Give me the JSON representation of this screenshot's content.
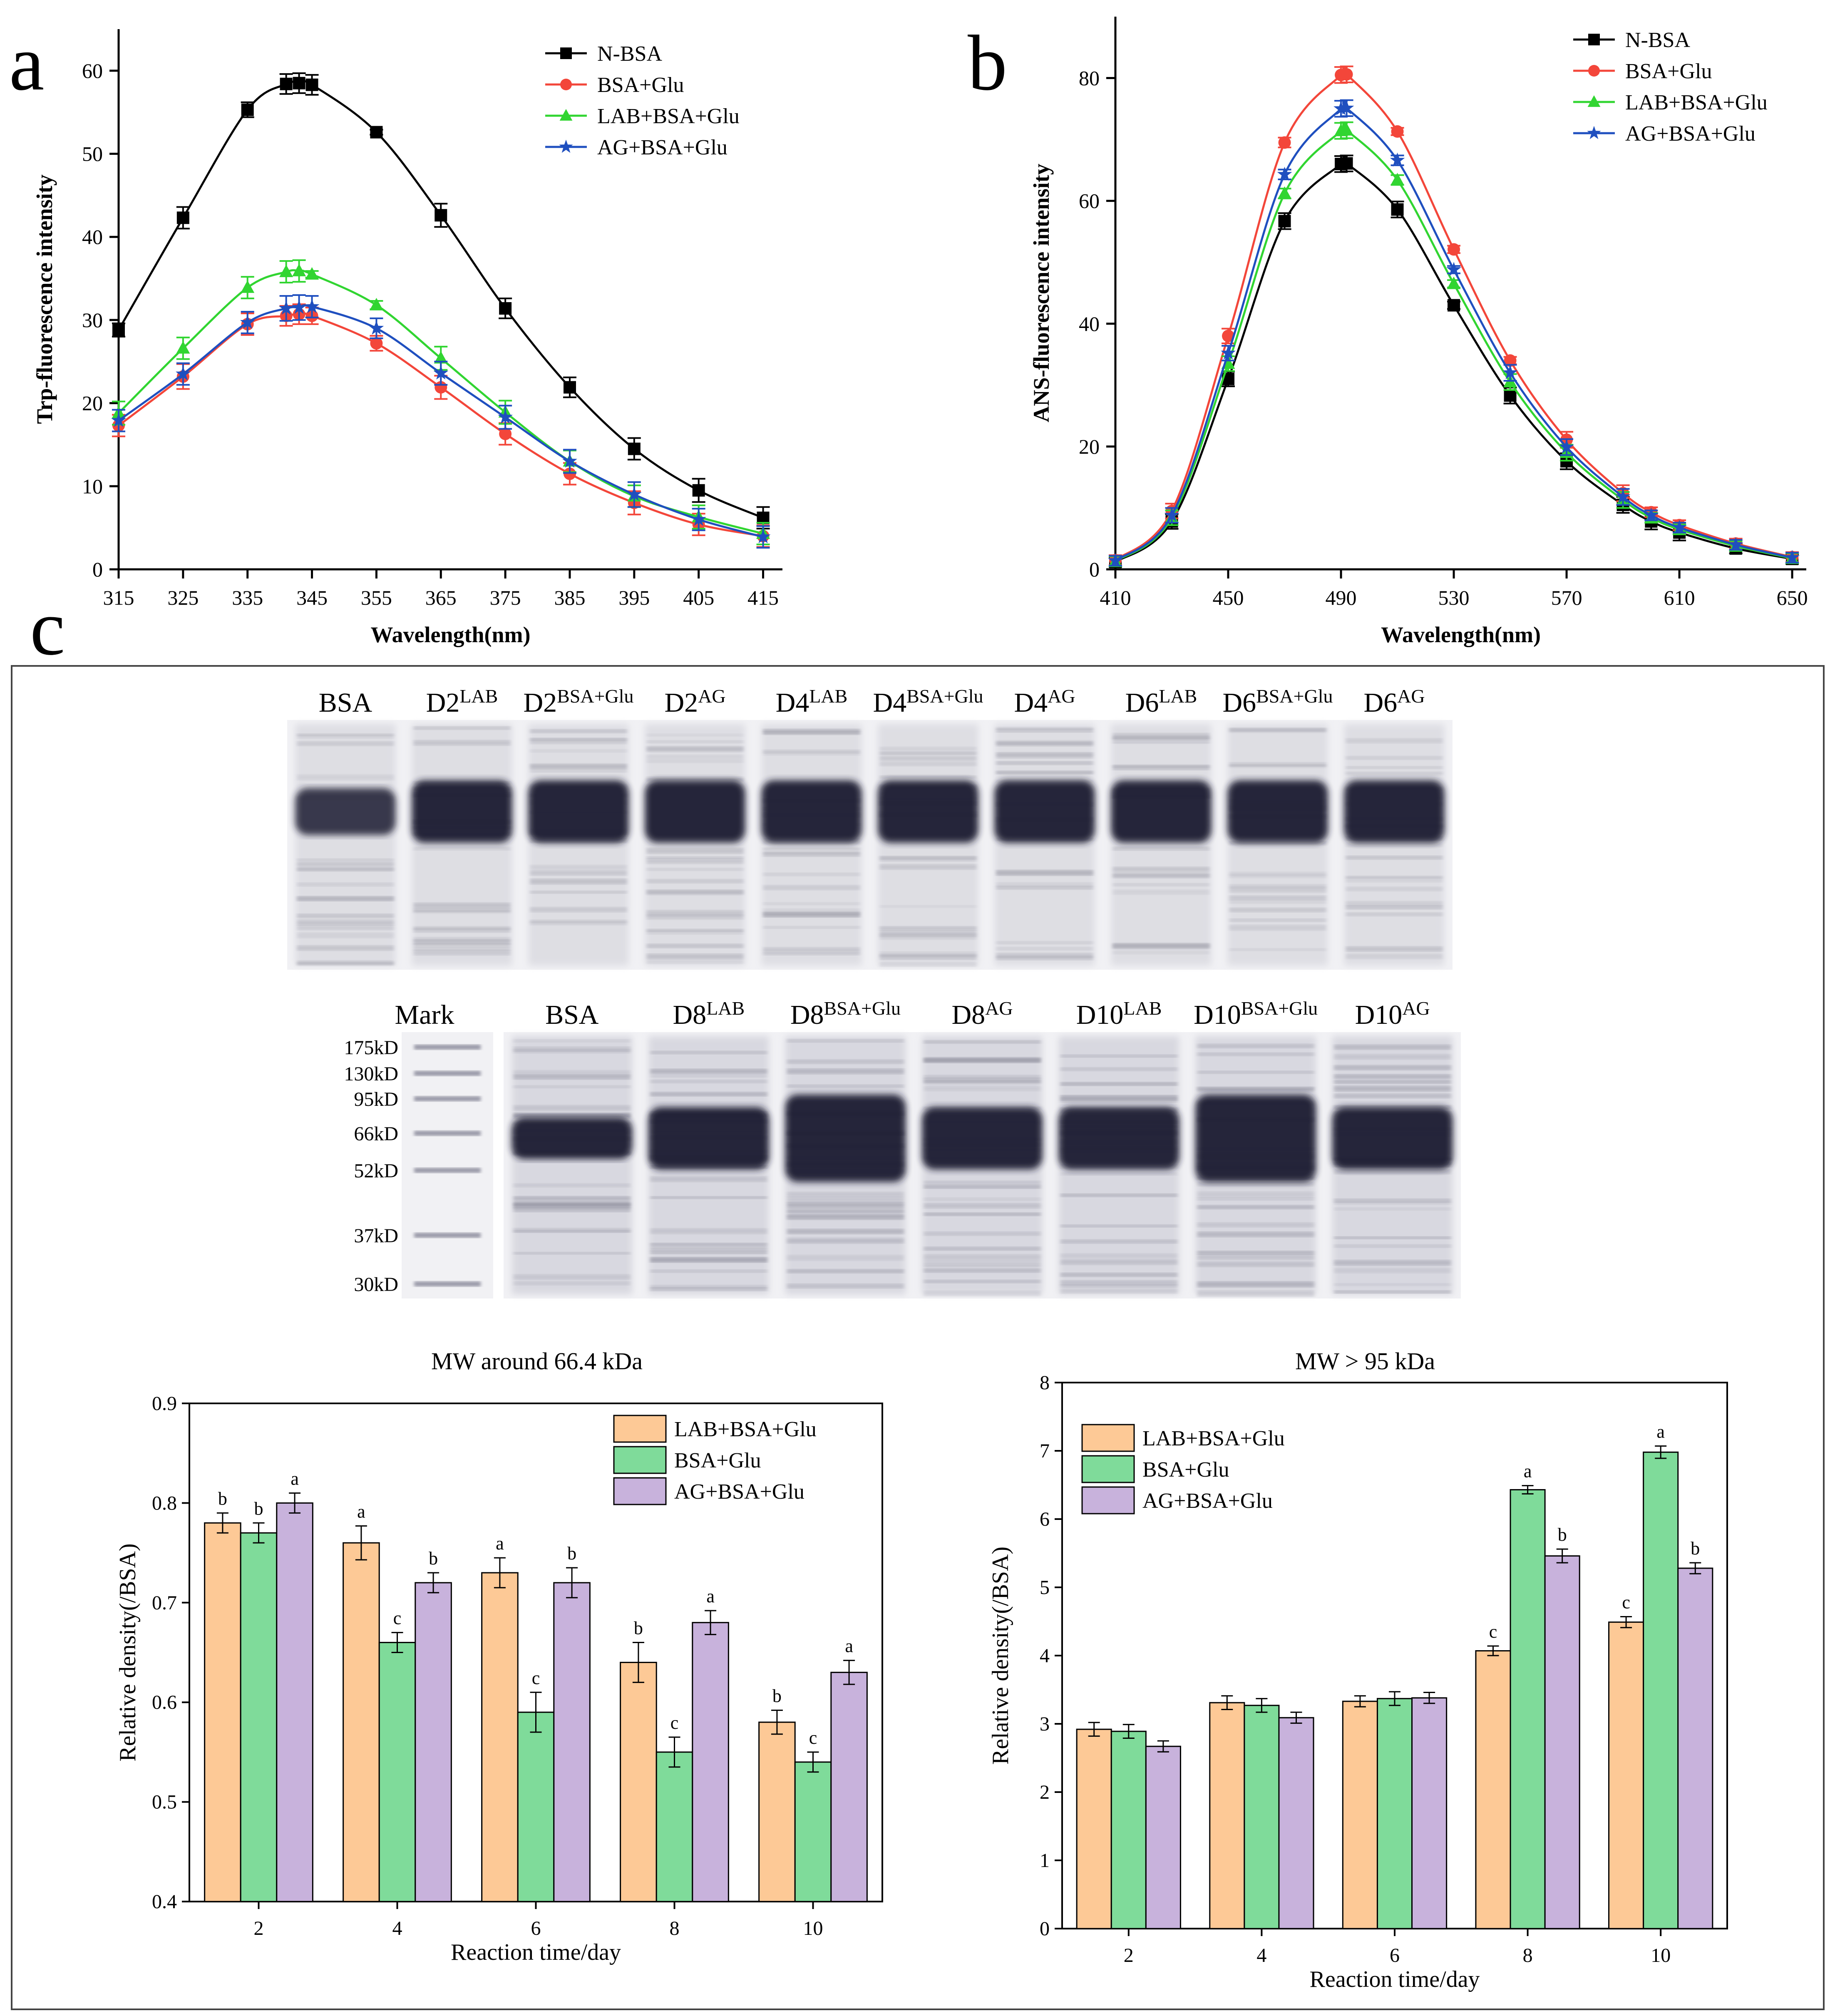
{
  "panels": {
    "a": {
      "label": "a"
    },
    "b": {
      "label": "b"
    },
    "c": {
      "label": "c"
    }
  },
  "colors": {
    "black": "#000000",
    "red": "#f3463a",
    "green": "#31d531",
    "blue": "#1f4fbf",
    "bar_orange": "#fdc996",
    "bar_green": "#7fdb9a",
    "bar_purple": "#c8b2dc"
  },
  "chart_data": [
    {
      "id": "a",
      "type": "line",
      "title": "",
      "xlabel": "Wavelength(nm)",
      "ylabel": "Trp-fluorescence intensity",
      "xlim": [
        315,
        418
      ],
      "ylim": [
        0,
        65
      ],
      "xticks": [
        315,
        325,
        335,
        345,
        355,
        365,
        375,
        385,
        395,
        405,
        415
      ],
      "yticks": [
        0,
        10,
        20,
        30,
        40,
        50,
        60
      ],
      "legend_position": "top-right",
      "series": [
        {
          "name": "N-BSA",
          "color": "#000000",
          "marker": "square",
          "x": [
            315,
            325,
            335,
            341,
            343,
            345,
            355,
            365,
            375,
            385,
            395,
            405,
            415
          ],
          "y": [
            28.8,
            42.3,
            55.3,
            58.4,
            58.5,
            58.3,
            52.6,
            42.6,
            31.4,
            21.9,
            14.5,
            9.5,
            6.2
          ],
          "err": [
            0.8,
            1.3,
            0.9,
            1.2,
            1.2,
            1.2,
            0.3,
            1.4,
            1.2,
            1.2,
            1.3,
            1.4,
            1.3
          ]
        },
        {
          "name": "BSA+Glu",
          "color": "#f3463a",
          "marker": "circle",
          "x": [
            315,
            325,
            335,
            341,
            343,
            345,
            355,
            365,
            375,
            385,
            395,
            405,
            415
          ],
          "y": [
            17.3,
            23.2,
            29.5,
            30.5,
            30.7,
            30.5,
            27.2,
            21.9,
            16.3,
            11.5,
            8.0,
            5.4,
            4.0
          ],
          "err": [
            1.3,
            1.5,
            1.3,
            1.2,
            1.2,
            1.0,
            0.9,
            1.4,
            1.3,
            1.3,
            1.4,
            1.3,
            1.3
          ]
        },
        {
          "name": "LAB+BSA+Glu",
          "color": "#31d531",
          "marker": "triangle",
          "x": [
            315,
            325,
            335,
            341,
            343,
            345,
            355,
            365,
            375,
            385,
            395,
            405,
            415
          ],
          "y": [
            18.8,
            26.6,
            33.9,
            35.8,
            35.9,
            35.5,
            31.8,
            25.4,
            18.9,
            13.0,
            8.8,
            6.3,
            4.3
          ],
          "err": [
            1.4,
            1.3,
            1.3,
            1.3,
            1.3,
            0.4,
            0.5,
            1.4,
            1.4,
            1.3,
            1.3,
            1.4,
            1.3
          ]
        },
        {
          "name": "AG+BSA+Glu",
          "color": "#1f4fbf",
          "marker": "star",
          "x": [
            315,
            325,
            335,
            341,
            343,
            345,
            355,
            365,
            375,
            385,
            395,
            405,
            415
          ],
          "y": [
            17.9,
            23.5,
            29.7,
            31.4,
            31.5,
            31.6,
            29.0,
            23.6,
            18.3,
            13.0,
            9.0,
            6.0,
            3.9
          ],
          "err": [
            1.3,
            1.3,
            1.3,
            1.5,
            1.5,
            1.3,
            1.2,
            1.4,
            1.4,
            1.4,
            1.5,
            1.3,
            1.3
          ]
        }
      ]
    },
    {
      "id": "b",
      "type": "line",
      "title": "",
      "xlabel": "Wavelength(nm)",
      "ylabel": "ANS-fluorescence intensity",
      "xlim": [
        410,
        655
      ],
      "ylim": [
        0,
        90
      ],
      "xticks": [
        410,
        450,
        490,
        530,
        570,
        610,
        650
      ],
      "yticks": [
        0,
        20,
        40,
        60,
        80
      ],
      "legend_position": "top-right",
      "series": [
        {
          "name": "N-BSA",
          "color": "#000000",
          "marker": "square",
          "x": [
            410,
            430,
            450,
            470,
            490,
            492,
            510,
            530,
            550,
            570,
            590,
            600,
            610,
            630,
            650
          ],
          "y": [
            1.2,
            7.8,
            31.0,
            56.7,
            66.0,
            66.1,
            58.6,
            43.0,
            28.3,
            17.6,
            10.5,
            7.8,
            6.0,
            3.4,
            1.7
          ],
          "err": [
            0.8,
            1.2,
            1.2,
            1.3,
            1.3,
            1.3,
            1.3,
            0.6,
            1.3,
            1.3,
            1.3,
            1.3,
            1.3,
            0.8,
            0.8
          ]
        },
        {
          "name": "BSA+Glu",
          "color": "#f3463a",
          "marker": "circle",
          "x": [
            410,
            430,
            450,
            470,
            490,
            492,
            510,
            530,
            550,
            570,
            590,
            600,
            610,
            630,
            650
          ],
          "y": [
            1.5,
            9.5,
            38.0,
            69.5,
            80.5,
            80.6,
            71.3,
            52.1,
            34.0,
            21.1,
            12.4,
            9.3,
            7.2,
            4.2,
            2.0
          ],
          "err": [
            0.8,
            1.2,
            1.2,
            0.8,
            1.3,
            1.3,
            0.6,
            0.6,
            0.6,
            1.3,
            1.3,
            0.8,
            0.8,
            0.8,
            0.8
          ]
        },
        {
          "name": "LAB+BSA+Glu",
          "color": "#31d531",
          "marker": "triangle",
          "x": [
            410,
            430,
            450,
            470,
            490,
            492,
            510,
            530,
            550,
            570,
            590,
            600,
            610,
            630,
            650
          ],
          "y": [
            1.3,
            8.4,
            33.5,
            61.2,
            71.4,
            71.5,
            63.4,
            46.5,
            30.5,
            19.0,
            11.3,
            8.4,
            6.5,
            3.8,
            1.8
          ],
          "err": [
            0.8,
            1.2,
            1.2,
            0.8,
            1.3,
            1.3,
            0.8,
            0.6,
            1.3,
            1.3,
            1.3,
            0.8,
            0.8,
            0.8,
            0.8
          ]
        },
        {
          "name": "AG+BSA+Glu",
          "color": "#1f4fbf",
          "marker": "star",
          "x": [
            410,
            430,
            450,
            470,
            490,
            492,
            510,
            530,
            550,
            570,
            590,
            600,
            610,
            630,
            650
          ],
          "y": [
            1.4,
            8.8,
            35.2,
            64.3,
            75.0,
            75.1,
            66.6,
            48.8,
            32.0,
            19.9,
            11.8,
            8.8,
            6.8,
            4.0,
            1.9
          ],
          "err": [
            0.8,
            1.2,
            1.2,
            0.8,
            1.3,
            1.3,
            0.8,
            0.6,
            1.3,
            1.3,
            1.3,
            0.8,
            0.8,
            0.8,
            0.8
          ]
        }
      ]
    },
    {
      "id": "c1",
      "type": "bar",
      "title": "MW around 66.4 kDa",
      "xlabel": "Reaction time/day",
      "ylabel": "Relative density(/BSA)",
      "ylim": [
        0.4,
        0.9
      ],
      "yticks": [
        0.4,
        0.5,
        0.6,
        0.7,
        0.8,
        0.9
      ],
      "categories": [
        "2",
        "4",
        "6",
        "8",
        "10"
      ],
      "legend_position": "top-right",
      "series": [
        {
          "name": "LAB+BSA+Glu",
          "color": "#fdc996",
          "values": [
            0.78,
            0.76,
            0.73,
            0.64,
            0.58
          ],
          "err": [
            0.01,
            0.017,
            0.015,
            0.02,
            0.012
          ],
          "letters": [
            "b",
            "a",
            "a",
            "b",
            "b"
          ]
        },
        {
          "name": "BSA+Glu",
          "color": "#7fdb9a",
          "values": [
            0.77,
            0.66,
            0.59,
            0.55,
            0.54
          ],
          "err": [
            0.01,
            0.01,
            0.02,
            0.015,
            0.01
          ],
          "letters": [
            "b",
            "c",
            "c",
            "c",
            "c"
          ]
        },
        {
          "name": "AG+BSA+Glu",
          "color": "#c8b2dc",
          "values": [
            0.8,
            0.72,
            0.72,
            0.68,
            0.63
          ],
          "err": [
            0.01,
            0.01,
            0.015,
            0.012,
            0.012
          ],
          "letters": [
            "a",
            "b",
            "b",
            "a",
            "a"
          ]
        }
      ]
    },
    {
      "id": "c2",
      "type": "bar",
      "title": "MW > 95 kDa",
      "xlabel": "Reaction time/day",
      "ylabel": "Relative density(/BSA)",
      "ylim": [
        0,
        8
      ],
      "yticks": [
        0,
        1,
        2,
        3,
        4,
        5,
        6,
        7,
        8
      ],
      "categories": [
        "2",
        "4",
        "6",
        "8",
        "10"
      ],
      "legend_position": "top-left",
      "series": [
        {
          "name": "LAB+BSA+Glu",
          "color": "#fdc996",
          "values": [
            2.92,
            3.31,
            3.33,
            4.07,
            4.49
          ],
          "err": [
            0.1,
            0.1,
            0.08,
            0.07,
            0.08
          ],
          "letters": [
            "",
            "",
            "",
            "c",
            "c"
          ]
        },
        {
          "name": "BSA+Glu",
          "color": "#7fdb9a",
          "values": [
            2.89,
            3.27,
            3.37,
            6.43,
            6.98
          ],
          "err": [
            0.1,
            0.1,
            0.1,
            0.06,
            0.09
          ],
          "letters": [
            "",
            "",
            "",
            "a",
            "a"
          ]
        },
        {
          "name": "AG+BSA+Glu",
          "color": "#c8b2dc",
          "values": [
            2.67,
            3.09,
            3.38,
            5.46,
            5.28
          ],
          "err": [
            0.08,
            0.08,
            0.08,
            0.1,
            0.08
          ],
          "letters": [
            "",
            "",
            "",
            "b",
            "b"
          ]
        }
      ]
    }
  ],
  "gel": {
    "top_lanes": [
      {
        "base": "BSA",
        "sup": ""
      },
      {
        "base": "D2",
        "sup": "LAB"
      },
      {
        "base": "D2",
        "sup": "BSA+Glu"
      },
      {
        "base": "D2",
        "sup": "AG"
      },
      {
        "base": "D4",
        "sup": "LAB"
      },
      {
        "base": "D4",
        "sup": "BSA+Glu"
      },
      {
        "base": "D4",
        "sup": "AG"
      },
      {
        "base": "D6",
        "sup": "LAB"
      },
      {
        "base": "D6",
        "sup": "BSA+Glu"
      },
      {
        "base": "D6",
        "sup": "AG"
      }
    ],
    "bottom_lanes": [
      {
        "base": "Mark",
        "sup": ""
      },
      {
        "base": "BSA",
        "sup": ""
      },
      {
        "base": "D8",
        "sup": "LAB"
      },
      {
        "base": "D8",
        "sup": "BSA+Glu"
      },
      {
        "base": "D8",
        "sup": "AG"
      },
      {
        "base": "D10",
        "sup": "LAB"
      },
      {
        "base": "D10",
        "sup": "BSA+Glu"
      },
      {
        "base": "D10",
        "sup": "AG"
      }
    ],
    "markers": [
      "175kD",
      "130kD",
      "95kD",
      "66kD",
      "52kD",
      "37kD",
      "30kD"
    ]
  }
}
